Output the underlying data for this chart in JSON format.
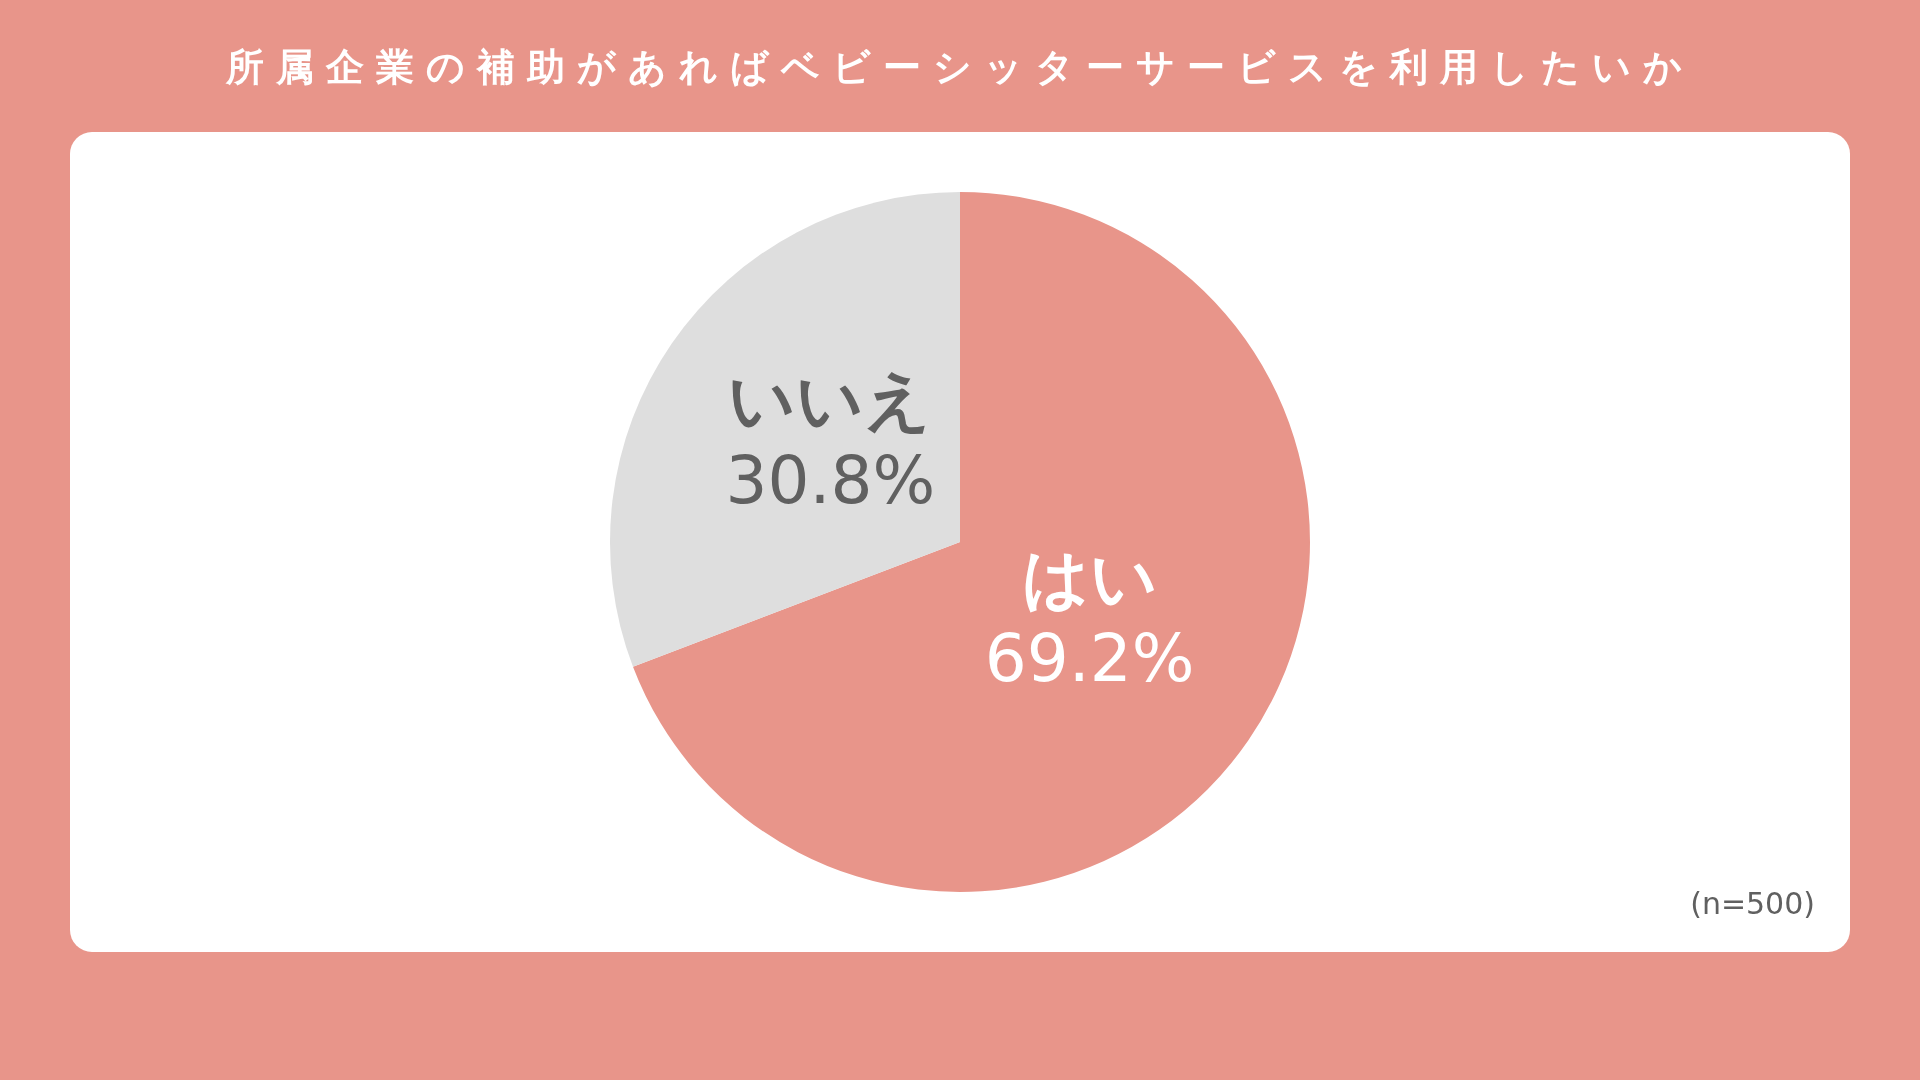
{
  "chart_data": {
    "type": "pie",
    "title": "所属企業の補助があればベビーシッターサービスを利用したいか",
    "categories": [
      "はい",
      "いいえ"
    ],
    "values": [
      69.2,
      30.8
    ],
    "colors": [
      "#e8958a",
      "#dedede"
    ],
    "value_labels": [
      "69.2%",
      "30.8%"
    ],
    "annotations": [
      "(n=500)"
    ]
  }
}
